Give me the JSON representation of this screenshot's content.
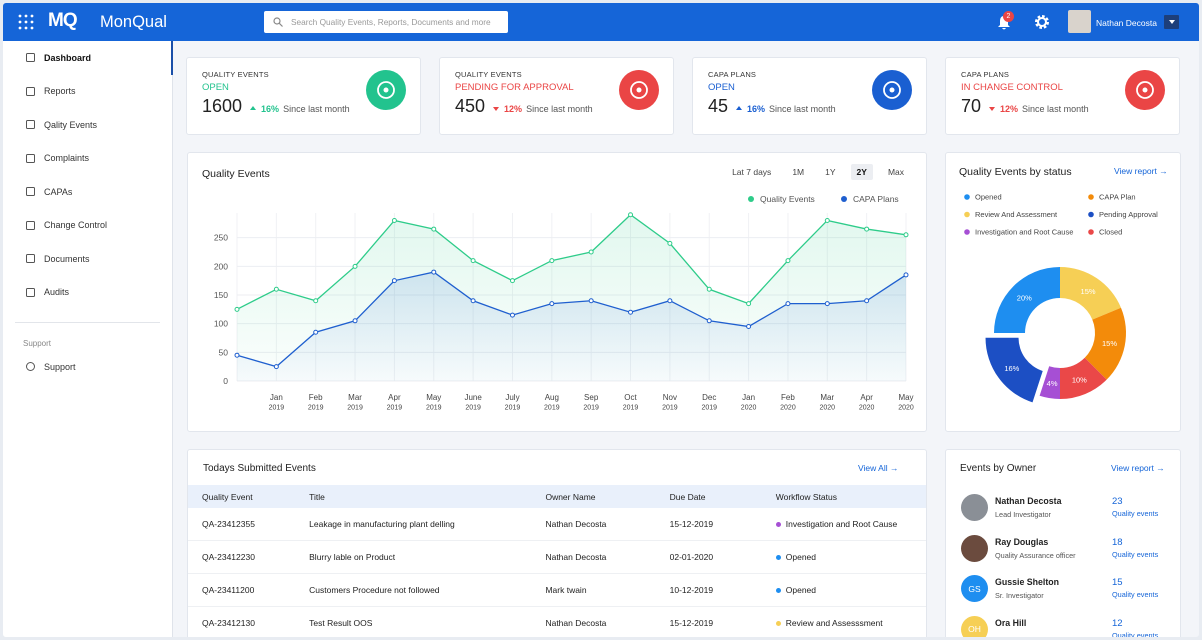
{
  "header": {
    "logo_mark": "MQ",
    "brand": "MonQual",
    "search_placeholder": "Search Quality Events, Reports, Documents and more",
    "notifications": 2,
    "user": "Nathan Decosta"
  },
  "sidebar": {
    "items": [
      "Dashboard",
      "Reports",
      "Qality Events",
      "Complaints",
      "CAPAs",
      "Change Control",
      "Documents",
      "Audits"
    ],
    "active": 0,
    "section": "Support",
    "section_items": [
      "Support"
    ]
  },
  "kpis": [
    {
      "label": "QUALITY EVENTS",
      "status": "OPEN",
      "value": 1600,
      "change": "16%",
      "trend": "up",
      "note": "Since last month",
      "color": "#22c38e"
    },
    {
      "label": "QUALITY EVENTS",
      "status": "PENDING FOR APPROVAL",
      "value": 450,
      "change": "12%",
      "trend": "down",
      "note": "Since last month",
      "color": "#ea4545"
    },
    {
      "label": "CAPA PLANS",
      "status": "OPEN",
      "value": 45,
      "change": "16%",
      "trend": "up",
      "note": "Since last month",
      "color": "#1a5fd1"
    },
    {
      "label": "CAPA PLANS",
      "status": "IN CHANGE CONTROL",
      "value": 70,
      "change": "12%",
      "trend": "down",
      "note": "Since last month",
      "color": "#ea4545"
    }
  ],
  "chart_data": [
    {
      "type": "line",
      "title": "Quality Events",
      "ranges": [
        "Lat 7 days",
        "1M",
        "1Y",
        "2Y",
        "Max"
      ],
      "selected_range": 3,
      "categories": [
        null,
        "Jan 2019",
        "Feb 2019",
        "Mar 2019",
        "Apr 2019",
        "May 2019",
        "June 2019",
        "July 2019",
        "Aug 2019",
        "Sep 2019",
        "Oct 2019",
        "Nov 2019",
        "Dec 2019",
        "Jan 2020",
        "Feb 2020",
        "Mar 2020",
        "Apr 2020",
        "May 2020"
      ],
      "series": [
        {
          "name": "Quality Events",
          "color": "#2ecc8a",
          "values": [
            125,
            160,
            140,
            200,
            280,
            265,
            210,
            175,
            210,
            225,
            290,
            240,
            160,
            135,
            210,
            280,
            265,
            255
          ]
        },
        {
          "name": "CAPA Plans",
          "color": "#1f5fcf",
          "values": [
            45,
            25,
            85,
            105,
            175,
            190,
            140,
            115,
            135,
            140,
            120,
            140,
            105,
            95,
            135,
            135,
            140,
            185
          ]
        }
      ],
      "ylim": [
        0,
        300
      ],
      "yticks": [
        0,
        50,
        100,
        150,
        200,
        250
      ],
      "grid": true
    },
    {
      "type": "pie",
      "title": "Quality Events by status",
      "link": "View report",
      "categories": [
        "Review And Assessment",
        "CAPA Plan",
        "Closed",
        "Investigation and Root Cause",
        "Pending Approval",
        "Opened"
      ],
      "values": [
        15,
        15,
        10,
        4,
        16,
        20
      ],
      "value_labels": [
        "15%",
        "15%",
        "10%",
        "4%",
        "16%",
        "20%"
      ],
      "colors": [
        "#f6cf55",
        "#f38b0a",
        "#ea4848",
        "#a64fd4",
        "#1c4fc4",
        "#1e8ef0"
      ],
      "exploded": 4,
      "donut": true
    }
  ],
  "table": {
    "title": "Todays Submitted Events",
    "link": "View All",
    "columns": [
      "Quality Event",
      "Title",
      "Owner Name",
      "Due Date",
      "Workflow Status"
    ],
    "rows": [
      [
        "QA-23412355",
        "Leakage in manufacturing plant delling",
        "Nathan Decosta",
        "15-12-2019",
        "Investigation and Root Cause"
      ],
      [
        "QA-23412230",
        "Blurry lable on Product",
        "Nathan Decosta",
        "02-01-2020",
        "Opened"
      ],
      [
        "QA-23411200",
        "Customers Procedure not followed",
        "Mark twain",
        "10-12-2019",
        "Opened"
      ],
      [
        "QA-23412130",
        "Test Result OOS",
        "Nathan Decosta",
        "15-12-2019",
        "Review and Assesssment"
      ]
    ],
    "status_colors": [
      "#a64fd4",
      "#1e8ef0",
      "#1e8ef0",
      "#f6cf55"
    ]
  },
  "owners": {
    "title": "Events by Owner",
    "link": "View report",
    "people": [
      {
        "name": "Nathan Decosta",
        "role": "Lead Investigator",
        "count": 23,
        "unit": "Quality events",
        "avatar_color": "#8a8f96"
      },
      {
        "name": "Ray Douglas",
        "role": "Quality Assurance officer",
        "count": 18,
        "unit": "Quality events",
        "avatar_color": "#6b4b3e"
      },
      {
        "name": "Gussie Shelton",
        "initials": "GS",
        "role": "Sr. Investigator",
        "count": 15,
        "unit": "Quality events",
        "avatar_color": "#1e8ef0"
      },
      {
        "name": "Ora Hill",
        "initials": "OH",
        "count": 12,
        "unit": "Quality events",
        "avatar_color": "#f6cf55"
      }
    ]
  }
}
